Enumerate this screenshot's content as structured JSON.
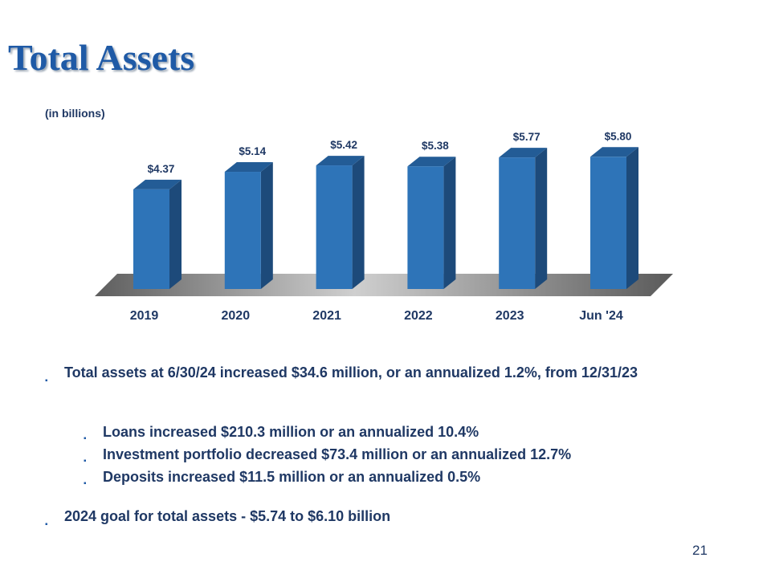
{
  "slide": {
    "title": "Total Assets",
    "units": "(in billions)",
    "page_number": "21"
  },
  "chart_data": {
    "type": "bar",
    "categories": [
      "2019",
      "2020",
      "2021",
      "2022",
      "2023",
      "Jun '24"
    ],
    "values": [
      4.37,
      5.14,
      5.42,
      5.38,
      5.77,
      5.8
    ],
    "data_labels": [
      "$4.37",
      "$5.14",
      "$5.42",
      "$5.38",
      "$5.77",
      "$5.80"
    ],
    "ylim": [
      0,
      6.5
    ],
    "grid": false,
    "style": "3d",
    "colors": {
      "bar_front": "#2e74b8",
      "bar_side": "#1d4a7a",
      "bar_top": "#235c96",
      "floor": "#a6a6a6",
      "text": "#1f3864"
    }
  },
  "bullets": [
    {
      "text": "Total assets at 6/30/24 increased $34.6 million, or an annualized 1.2%, from 12/31/23",
      "sub": [
        "Loans increased $210.3 million  or an annualized 10.4%",
        "Investment portfolio decreased $73.4 million  or an annualized 12.7%",
        "Deposits increased $11.5 million  or an annualized 0.5%"
      ]
    },
    {
      "text": "2024 goal for total assets - $5.74 to $6.10 billion",
      "sub": []
    }
  ],
  "bullet_marker": "▪"
}
